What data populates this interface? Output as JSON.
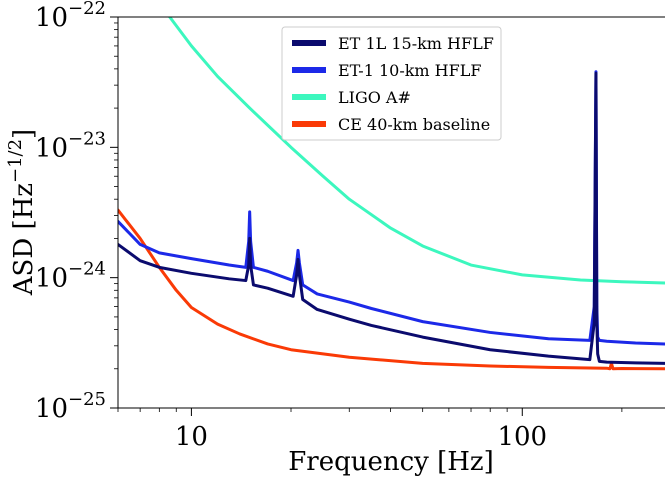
{
  "chart_data": {
    "type": "line",
    "title": "",
    "xlabel": "Frequency [Hz]",
    "ylabel": "ASD [Hz",
    "ylabel_exp": "−1/2",
    "ylabel_end": "]",
    "xscale": "log",
    "yscale": "log",
    "xlim": [
      6,
      270
    ],
    "ylim": [
      1e-25,
      1e-22
    ],
    "grid": false,
    "legend_position": "top-right",
    "x_ticks": [
      {
        "value": 10,
        "label": "10"
      },
      {
        "value": 100,
        "label": "100"
      }
    ],
    "y_ticks": [
      {
        "value": 1e-25,
        "base": "10",
        "exp": "−25"
      },
      {
        "value": 1e-24,
        "base": "10",
        "exp": "−24"
      },
      {
        "value": 1e-23,
        "base": "10",
        "exp": "−23"
      },
      {
        "value": 1e-22,
        "base": "10",
        "exp": "−22"
      }
    ],
    "series": [
      {
        "name": "ET 1L 15-km HFLF",
        "color": "#0b0b6e",
        "x": [
          6,
          7,
          8,
          10,
          13,
          14.6,
          14.9,
          15.0,
          15.1,
          15.4,
          17,
          20.3,
          20.8,
          21.0,
          21.2,
          21.7,
          24,
          30,
          35,
          50,
          80,
          120,
          160,
          165,
          167,
          168,
          169,
          171,
          180,
          220,
          270
        ],
        "y": [
          1.8e-24,
          1.35e-24,
          1.2e-24,
          1.08e-24,
          9.8e-25,
          9.5e-25,
          1.25e-24,
          2e-24,
          1.25e-24,
          8.8e-25,
          8.3e-25,
          7.2e-25,
          1.05e-24,
          1.38e-24,
          1.05e-24,
          6.8e-25,
          5.7e-25,
          4.8e-25,
          4.3e-25,
          3.5e-25,
          2.8e-25,
          2.5e-25,
          2.35e-25,
          4.5e-25,
          3.7e-23,
          4.5e-25,
          2.6e-25,
          2.28e-25,
          2.25e-25,
          2.22e-25,
          2.2e-25
        ]
      },
      {
        "name": "ET-1 10-km HFLF",
        "color": "#1c29e8",
        "x": [
          6,
          7,
          8,
          10,
          13,
          14.6,
          14.9,
          15.0,
          15.1,
          15.4,
          17,
          20.3,
          20.8,
          21.0,
          21.2,
          21.7,
          24,
          30,
          35,
          50,
          80,
          120,
          160,
          165,
          167,
          168,
          169,
          171,
          180,
          220,
          270
        ],
        "y": [
          2.7e-24,
          1.8e-24,
          1.55e-24,
          1.4e-24,
          1.25e-24,
          1.2e-24,
          1.9e-24,
          3.2e-24,
          1.9e-24,
          1.2e-24,
          1.12e-24,
          9.5e-25,
          1.3e-24,
          1.62e-24,
          1.3e-24,
          8.8e-25,
          7.5e-25,
          6.5e-25,
          5.8e-25,
          4.6e-25,
          3.8e-25,
          3.4e-25,
          3.3e-25,
          6e-25,
          3.8e-23,
          6e-25,
          3.5e-25,
          3.3e-25,
          3.25e-25,
          3.15e-25,
          3.1e-25
        ]
      },
      {
        "name": "LIGO A#",
        "color": "#3cf7be",
        "x": [
          8.6,
          10,
          12,
          15,
          20,
          25,
          30,
          40,
          50,
          70,
          100,
          150,
          200,
          270
        ],
        "y": [
          1e-22,
          6e-23,
          3.5e-23,
          2e-23,
          1e-23,
          6e-24,
          4e-24,
          2.4e-24,
          1.75e-24,
          1.25e-24,
          1.05e-24,
          9.6e-25,
          9.3e-25,
          9.1e-25
        ]
      },
      {
        "name": "CE 40-km baseline",
        "color": "#fa3a06",
        "x": [
          6,
          7,
          8,
          9,
          10,
          12,
          14,
          17,
          20,
          30,
          50,
          80,
          120,
          180,
          184,
          186,
          188,
          200,
          270
        ],
        "y": [
          3.3e-24,
          2e-24,
          1.2e-24,
          8e-25,
          5.9e-25,
          4.4e-25,
          3.7e-25,
          3.1e-25,
          2.8e-25,
          2.45e-25,
          2.2e-25,
          2.1e-25,
          2.05e-25,
          2.02e-25,
          2e-25,
          2.2e-25,
          2e-25,
          2.01e-25,
          2e-25
        ]
      }
    ]
  }
}
